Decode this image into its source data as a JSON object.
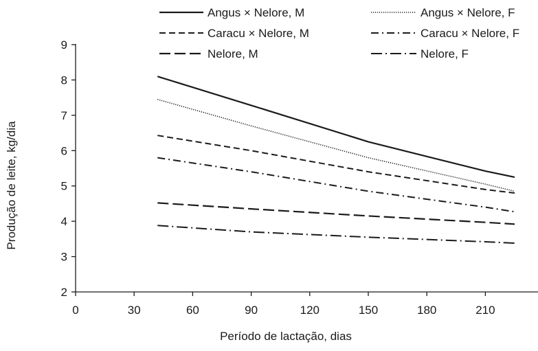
{
  "chart_data": {
    "type": "line",
    "title": "",
    "xlabel": "Período de lactação, dias",
    "ylabel": "Produção de leite, kg/dia",
    "xlim": [
      0,
      225
    ],
    "ylim": [
      2,
      9
    ],
    "x_ticks": [
      "0",
      "30",
      "60",
      "90",
      "120",
      "150",
      "180",
      "210"
    ],
    "y_ticks": [
      "2",
      "3",
      "4",
      "5",
      "6",
      "7",
      "8",
      "9"
    ],
    "grid": false,
    "legend_position": "top",
    "series": [
      {
        "name": "Angus × Nelore, M",
        "style": "solid",
        "x": [
          42,
          90,
          150,
          210,
          225
        ],
        "y": [
          8.1,
          7.28,
          6.25,
          5.42,
          5.25
        ]
      },
      {
        "name": "Angus × Nelore, F",
        "style": "dotted",
        "x": [
          42,
          90,
          150,
          210,
          225
        ],
        "y": [
          7.45,
          6.7,
          5.8,
          5.05,
          4.85
        ]
      },
      {
        "name": "Caracu × Nelore, M",
        "style": "dashed",
        "x": [
          42,
          90,
          150,
          210,
          225
        ],
        "y": [
          6.43,
          6.0,
          5.4,
          4.9,
          4.8
        ]
      },
      {
        "name": "Caracu × Nelore, F",
        "style": "dashdot",
        "x": [
          42,
          90,
          150,
          210,
          225
        ],
        "y": [
          5.8,
          5.4,
          4.85,
          4.4,
          4.27
        ]
      },
      {
        "name": "Nelore, M",
        "style": "longdash",
        "x": [
          42,
          90,
          150,
          210,
          225
        ],
        "y": [
          4.52,
          4.35,
          4.15,
          3.97,
          3.92
        ]
      },
      {
        "name": "Nelore, F",
        "style": "longdashdot",
        "x": [
          42,
          90,
          150,
          210,
          225
        ],
        "y": [
          3.88,
          3.7,
          3.55,
          3.42,
          3.38
        ]
      }
    ]
  }
}
